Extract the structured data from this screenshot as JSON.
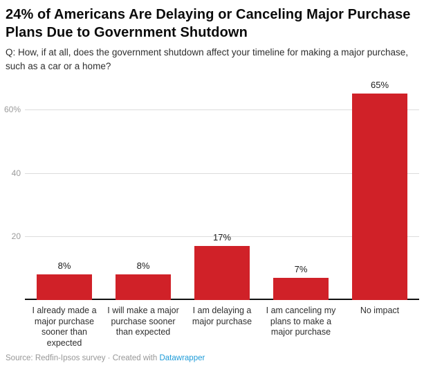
{
  "header": {
    "title": "24% of Americans Are Delaying or Canceling Major Purchase Plans Due to Government Shutdown",
    "subtitle": "Q: How, if at all, does the government shutdown affect your timeline for making a major purchase, such as a car or a home?"
  },
  "chart_data": {
    "type": "bar",
    "title": "24% of Americans Are Delaying or Canceling Major Purchase Plans Due to Government Shutdown",
    "subtitle": "Q: How, if at all, does the government shutdown affect your timeline for making a major purchase, such as a car or a home?",
    "categories": [
      "I already made a major purchase sooner than expected",
      "I will make a major purchase sooner than expected",
      "I am delaying a major purchase",
      "I am canceling my plans to make a major purchase",
      "No impact"
    ],
    "values": [
      8,
      8,
      17,
      7,
      65
    ],
    "value_labels": [
      "8%",
      "8%",
      "17%",
      "7%",
      "65%"
    ],
    "yticks": [
      {
        "value": 20,
        "label": "20"
      },
      {
        "value": 40,
        "label": "40"
      },
      {
        "value": 60,
        "label": "60%"
      }
    ],
    "ylim": [
      0,
      70
    ],
    "grid": true,
    "legend": "none",
    "xlabel": "",
    "ylabel": "",
    "bar_color": "#d02128",
    "gridline_color": "#dcdcdc",
    "tick_label_color": "#9b9b9b"
  },
  "footer": {
    "source_label": "Source:",
    "source": "Redfin-Ipsos survey",
    "separator": "·",
    "created_with": "Created with",
    "link_label": "Datawrapper",
    "link_color": "#1d9bd8"
  }
}
